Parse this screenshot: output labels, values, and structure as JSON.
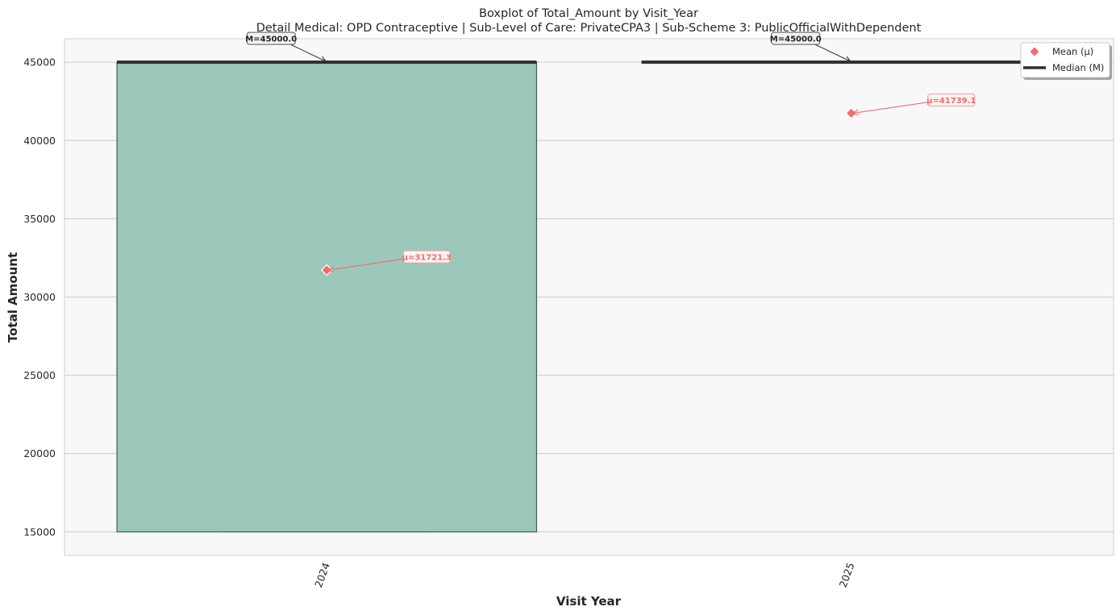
{
  "chart_data": {
    "type": "box",
    "title": "Boxplot of Total_Amount by Visit_Year",
    "subtitle": "Detail Medical: OPD Contraceptive | Sub-Level of Care: PrivateCPA3 | Sub-Scheme 3: PublicOfficialWithDependent",
    "xlabel": "Visit Year",
    "ylabel": "Total Amount",
    "ylim": [
      13500,
      46500
    ],
    "yticks": [
      15000,
      20000,
      25000,
      30000,
      35000,
      40000,
      45000
    ],
    "categories": [
      "2024",
      "2025"
    ],
    "boxes": [
      {
        "category": "2024",
        "q1": 15000,
        "median": 45000,
        "q3": 45000,
        "whisker_low": 15000,
        "whisker_high": 45000,
        "mean": 31721.3,
        "median_label": "M=45000.0",
        "mean_label": "μ=31721.3"
      },
      {
        "category": "2025",
        "q1": 45000,
        "median": 45000,
        "q3": 45000,
        "whisker_low": 45000,
        "whisker_high": 45000,
        "mean": 41739.1,
        "median_label": "M=45000.0",
        "mean_label": "μ=41739.1"
      }
    ],
    "legend": {
      "position": "top-right",
      "entries": [
        {
          "label": "Mean (μ)",
          "marker": "diamond",
          "color": "#f36c6c"
        },
        {
          "label": "Median (M)",
          "marker": "line",
          "color": "#2b2f33"
        }
      ]
    },
    "colors": {
      "box_fill": "#9bc8bb",
      "box_edge": "#4a5a55",
      "median": "#2b2f33",
      "mean": "#f36c6c",
      "plot_bg": "#f8f8f8",
      "grid": "#cccccc"
    },
    "grid": true
  }
}
